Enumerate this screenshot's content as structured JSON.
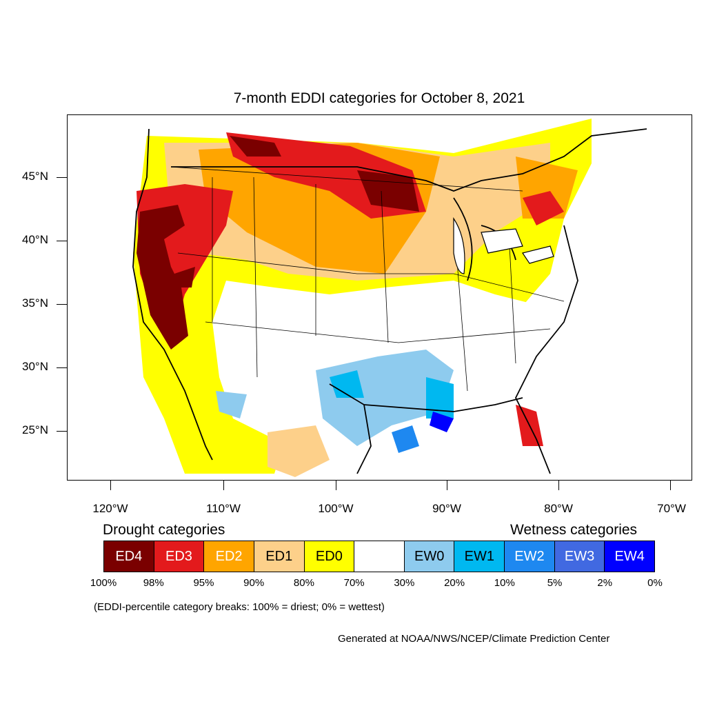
{
  "title": "7-month EDDI categories for October 8, 2021",
  "axes": {
    "lat_labels": [
      "45°N",
      "40°N",
      "35°N",
      "30°N",
      "25°N"
    ],
    "lon_labels": [
      "120°W",
      "110°W",
      "100°W",
      "90°W",
      "80°W",
      "70°W"
    ]
  },
  "legend": {
    "drought_heading": "Drought categories",
    "wetness_heading": "Wetness categories",
    "categories": [
      {
        "label": "ED4",
        "color": "#7a0000",
        "text_color": "#ffffff"
      },
      {
        "label": "ED3",
        "color": "#e31a1c",
        "text_color": "#ffffff"
      },
      {
        "label": "ED2",
        "color": "#ffa500",
        "text_color": "#ffffff"
      },
      {
        "label": "ED1",
        "color": "#fdd08a",
        "text_color": "#000000"
      },
      {
        "label": "ED0",
        "color": "#ffff00",
        "text_color": "#000000"
      },
      {
        "label": "",
        "color": "#ffffff",
        "text_color": "#000000"
      },
      {
        "label": "EW0",
        "color": "#8ecbee",
        "text_color": "#000000"
      },
      {
        "label": "EW1",
        "color": "#00b8f0",
        "text_color": "#000000"
      },
      {
        "label": "EW2",
        "color": "#1e88f0",
        "text_color": "#ffffff"
      },
      {
        "label": "EW3",
        "color": "#4169e1",
        "text_color": "#ffffff"
      },
      {
        "label": "EW4",
        "color": "#0000ff",
        "text_color": "#ffffff"
      }
    ],
    "breaks": [
      "100%",
      "98%",
      "95%",
      "90%",
      "80%",
      "70%",
      "30%",
      "20%",
      "10%",
      "5%",
      "2%",
      "0%"
    ]
  },
  "note": "(EDDI-percentile category breaks: 100% = driest; 0% = wettest)",
  "credit": "Generated at NOAA/NWS/NCEP/Climate Prediction Center"
}
